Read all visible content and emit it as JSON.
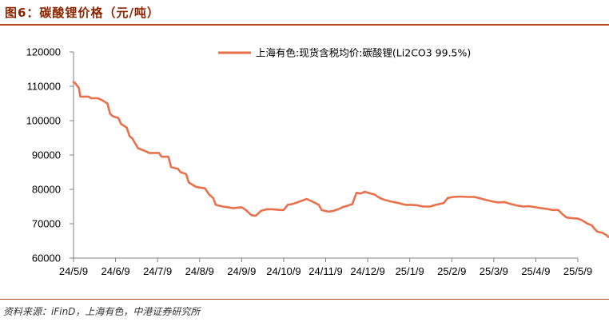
{
  "figure": {
    "title": "图6：碳酸锂价格（元/吨）",
    "source": "资料来源：iFinD，上海有色，中港证券研究所"
  },
  "colors": {
    "series": "#e8704a",
    "axis": "#808080",
    "title": "#8b2500",
    "rule": "#b5471c"
  },
  "chart_data": {
    "type": "line",
    "title": "",
    "xlabel": "",
    "ylabel": "",
    "ylim": [
      60000,
      120000
    ],
    "y_ticks": [
      "120000",
      "110000",
      "100000",
      "90000",
      "80000",
      "70000",
      "60000"
    ],
    "x_ticks": [
      "24/5/9",
      "24/6/9",
      "24/7/9",
      "24/8/9",
      "24/9/9",
      "24/10/9",
      "24/11/9",
      "24/12/9",
      "25/1/9",
      "25/2/9",
      "25/3/9",
      "25/4/9",
      "25/5/9"
    ],
    "grid": false,
    "legend_position": "top-center",
    "series": [
      {
        "name": "上海有色:现货含税均价:碳酸锂(Li2CO3 99.5%)",
        "points": [
          [
            "2024-05-09",
            111250
          ],
          [
            "2024-05-10",
            111000
          ],
          [
            "2024-05-13",
            109500
          ],
          [
            "2024-05-14",
            107000
          ],
          [
            "2024-05-16",
            107000
          ],
          [
            "2024-05-20",
            107000
          ],
          [
            "2024-05-22",
            106500
          ],
          [
            "2024-05-27",
            106500
          ],
          [
            "2024-05-30",
            106000
          ],
          [
            "2024-06-03",
            105000
          ],
          [
            "2024-06-05",
            102000
          ],
          [
            "2024-06-07",
            101250
          ],
          [
            "2024-06-11",
            100800
          ],
          [
            "2024-06-13",
            99000
          ],
          [
            "2024-06-17",
            98000
          ],
          [
            "2024-06-19",
            95500
          ],
          [
            "2024-06-21",
            94800
          ],
          [
            "2024-06-25",
            92000
          ],
          [
            "2024-06-28",
            91500
          ],
          [
            "2024-07-01",
            91000
          ],
          [
            "2024-07-03",
            90600
          ],
          [
            "2024-07-10",
            90600
          ],
          [
            "2024-07-12",
            89500
          ],
          [
            "2024-07-17",
            89500
          ],
          [
            "2024-07-19",
            86500
          ],
          [
            "2024-07-24",
            86000
          ],
          [
            "2024-07-26",
            85000
          ],
          [
            "2024-07-30",
            84500
          ],
          [
            "2024-08-01",
            82000
          ],
          [
            "2024-08-06",
            80800
          ],
          [
            "2024-08-09",
            80500
          ],
          [
            "2024-08-13",
            80300
          ],
          [
            "2024-08-16",
            78500
          ],
          [
            "2024-08-19",
            77500
          ],
          [
            "2024-08-21",
            75500
          ],
          [
            "2024-08-26",
            75000
          ],
          [
            "2024-08-30",
            74800
          ],
          [
            "2024-09-03",
            74500
          ],
          [
            "2024-09-09",
            74800
          ],
          [
            "2024-09-12",
            74000
          ],
          [
            "2024-09-16",
            72500
          ],
          [
            "2024-09-19",
            72300
          ],
          [
            "2024-09-23",
            73800
          ],
          [
            "2024-09-27",
            74200
          ],
          [
            "2024-10-01",
            74200
          ],
          [
            "2024-10-07",
            74000
          ],
          [
            "2024-10-09",
            74000
          ],
          [
            "2024-10-12",
            75500
          ],
          [
            "2024-10-16",
            75800
          ],
          [
            "2024-10-21",
            76500
          ],
          [
            "2024-10-26",
            77200
          ],
          [
            "2024-10-30",
            76500
          ],
          [
            "2024-11-04",
            75500
          ],
          [
            "2024-11-06",
            74000
          ],
          [
            "2024-11-08",
            73800
          ],
          [
            "2024-11-11",
            73500
          ],
          [
            "2024-11-14",
            73700
          ],
          [
            "2024-11-18",
            74200
          ],
          [
            "2024-11-21",
            74800
          ],
          [
            "2024-11-25",
            75300
          ],
          [
            "2024-11-28",
            75700
          ],
          [
            "2024-12-01",
            79000
          ],
          [
            "2024-12-04",
            78800
          ],
          [
            "2024-12-07",
            79300
          ],
          [
            "2024-12-11",
            78800
          ],
          [
            "2024-12-14",
            78500
          ],
          [
            "2024-12-18",
            77500
          ],
          [
            "2024-12-21",
            77000
          ],
          [
            "2024-12-26",
            76500
          ],
          [
            "2025-01-01",
            76000
          ],
          [
            "2025-01-06",
            75500
          ],
          [
            "2025-01-10",
            75500
          ],
          [
            "2025-01-14",
            75400
          ],
          [
            "2025-01-19",
            75000
          ],
          [
            "2025-01-24",
            75000
          ],
          [
            "2025-01-28",
            75500
          ],
          [
            "2025-02-03",
            76000
          ],
          [
            "2025-02-06",
            77500
          ],
          [
            "2025-02-10",
            77800
          ],
          [
            "2025-02-15",
            77900
          ],
          [
            "2025-02-20",
            77800
          ],
          [
            "2025-02-24",
            77800
          ],
          [
            "2025-02-27",
            77500
          ],
          [
            "2025-03-03",
            77000
          ],
          [
            "2025-03-08",
            76500
          ],
          [
            "2025-03-12",
            76200
          ],
          [
            "2025-03-17",
            76300
          ],
          [
            "2025-03-21",
            75800
          ],
          [
            "2025-03-26",
            75300
          ],
          [
            "2025-03-31",
            75000
          ],
          [
            "2025-04-04",
            75100
          ],
          [
            "2025-04-09",
            74800
          ],
          [
            "2025-04-13",
            74500
          ],
          [
            "2025-04-17",
            74300
          ],
          [
            "2025-04-21",
            74000
          ],
          [
            "2025-04-25",
            74000
          ],
          [
            "2025-04-28",
            72800
          ],
          [
            "2025-05-01",
            71800
          ],
          [
            "2025-05-05",
            71600
          ],
          [
            "2025-05-09",
            71500
          ],
          [
            "2025-05-12",
            71000
          ],
          [
            "2025-05-14",
            70500
          ],
          [
            "2025-05-16",
            70000
          ],
          [
            "2025-05-19",
            69500
          ],
          [
            "2025-05-21",
            68500
          ],
          [
            "2025-05-23",
            67700
          ],
          [
            "2025-05-27",
            67300
          ],
          [
            "2025-05-29",
            66800
          ],
          [
            "2025-06-02",
            65500
          ],
          [
            "2025-06-03",
            65000
          ]
        ]
      }
    ]
  }
}
